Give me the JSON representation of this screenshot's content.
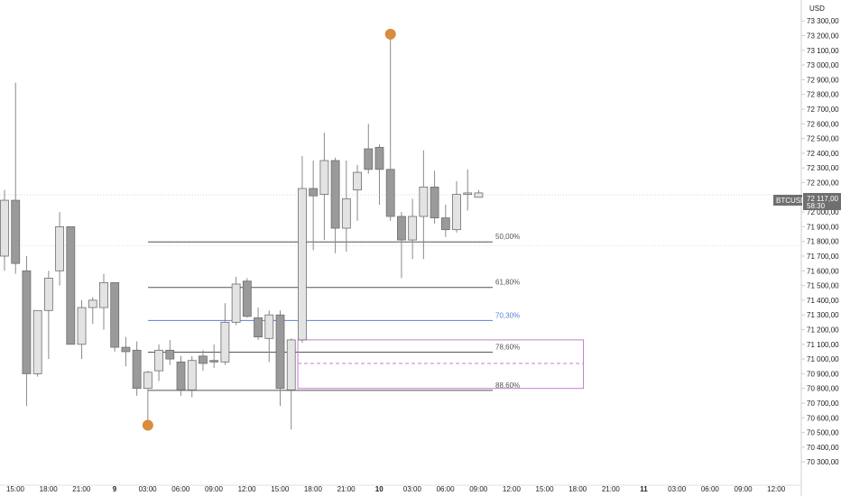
{
  "chart_data": {
    "type": "candlestick",
    "symbol": "BTCUSD",
    "currency_label": "USD",
    "current_price_label": "72 117,00",
    "countdown_label": "58:30",
    "current_price": 72117,
    "y_range": [
      70200,
      73400
    ],
    "y_ticks": [
      {
        "v": 73300,
        "label": "73 300,00"
      },
      {
        "v": 73200,
        "label": "73 200,00"
      },
      {
        "v": 73100,
        "label": "73 100,00"
      },
      {
        "v": 73000,
        "label": "73 000,00"
      },
      {
        "v": 72900,
        "label": "72 900,00"
      },
      {
        "v": 72800,
        "label": "72 800,00"
      },
      {
        "v": 72700,
        "label": "72 700,00"
      },
      {
        "v": 72600,
        "label": "72 600,00"
      },
      {
        "v": 72500,
        "label": "72 500,00"
      },
      {
        "v": 72400,
        "label": "72 400,00"
      },
      {
        "v": 72300,
        "label": "72 300,00"
      },
      {
        "v": 72200,
        "label": "72 200,00"
      },
      {
        "v": 72000,
        "label": "72 000,00"
      },
      {
        "v": 71900,
        "label": "71 900,00"
      },
      {
        "v": 71800,
        "label": "71 800,00"
      },
      {
        "v": 71700,
        "label": "71 700,00"
      },
      {
        "v": 71600,
        "label": "71 600,00"
      },
      {
        "v": 71500,
        "label": "71 500,00"
      },
      {
        "v": 71400,
        "label": "71 400,00"
      },
      {
        "v": 71300,
        "label": "71 300,00"
      },
      {
        "v": 71200,
        "label": "71 200,00"
      },
      {
        "v": 71100,
        "label": "71 100,00"
      },
      {
        "v": 71000,
        "label": "71 000,00"
      },
      {
        "v": 70900,
        "label": "70 900,00"
      },
      {
        "v": 70800,
        "label": "70 800,00"
      },
      {
        "v": 70700,
        "label": "70 700,00"
      },
      {
        "v": 70600,
        "label": "70 600,00"
      },
      {
        "v": 70500,
        "label": "70 500,00"
      },
      {
        "v": 70400,
        "label": "70 400,00"
      },
      {
        "v": 70300,
        "label": "70 300,00"
      }
    ],
    "x_ticks": [
      {
        "i": 0,
        "label": "15:00",
        "bold": false
      },
      {
        "i": 3,
        "label": "18:00",
        "bold": false
      },
      {
        "i": 6,
        "label": "21:00",
        "bold": false
      },
      {
        "i": 9,
        "label": "9",
        "bold": true
      },
      {
        "i": 12,
        "label": "03:00",
        "bold": false
      },
      {
        "i": 15,
        "label": "06:00",
        "bold": false
      },
      {
        "i": 18,
        "label": "09:00",
        "bold": false
      },
      {
        "i": 21,
        "label": "12:00",
        "bold": false
      },
      {
        "i": 24,
        "label": "15:00",
        "bold": false
      },
      {
        "i": 27,
        "label": "18:00",
        "bold": false
      },
      {
        "i": 30,
        "label": "21:00",
        "bold": false
      },
      {
        "i": 33,
        "label": "10",
        "bold": true
      },
      {
        "i": 36,
        "label": "03:00",
        "bold": false
      },
      {
        "i": 39,
        "label": "06:00",
        "bold": false
      },
      {
        "i": 42,
        "label": "09:00",
        "bold": false
      },
      {
        "i": 45,
        "label": "12:00",
        "bold": false
      },
      {
        "i": 48,
        "label": "15:00",
        "bold": false
      },
      {
        "i": 51,
        "label": "18:00",
        "bold": false
      },
      {
        "i": 54,
        "label": "21:00",
        "bold": false
      },
      {
        "i": 57,
        "label": "11",
        "bold": true
      },
      {
        "i": 60,
        "label": "03:00",
        "bold": false
      },
      {
        "i": 63,
        "label": "06:00",
        "bold": false
      },
      {
        "i": 66,
        "label": "09:00",
        "bold": false
      },
      {
        "i": 69,
        "label": "12:00",
        "bold": false
      }
    ],
    "candles": [
      {
        "o": 71700,
        "h": 72150,
        "l": 71600,
        "c": 72080
      },
      {
        "o": 72080,
        "h": 72880,
        "l": 71580,
        "c": 71650
      },
      {
        "o": 71600,
        "h": 71700,
        "l": 70680,
        "c": 70900
      },
      {
        "o": 70900,
        "h": 71330,
        "l": 70880,
        "c": 71330
      },
      {
        "o": 71330,
        "h": 71600,
        "l": 71000,
        "c": 71550
      },
      {
        "o": 71600,
        "h": 72000,
        "l": 71500,
        "c": 71900
      },
      {
        "o": 71900,
        "h": 71900,
        "l": 71100,
        "c": 71100
      },
      {
        "o": 71100,
        "h": 71400,
        "l": 71000,
        "c": 71350
      },
      {
        "o": 71350,
        "h": 71420,
        "l": 71240,
        "c": 71400
      },
      {
        "o": 71350,
        "h": 71580,
        "l": 71200,
        "c": 71520
      },
      {
        "o": 71520,
        "h": 71520,
        "l": 71050,
        "c": 71080
      },
      {
        "o": 71080,
        "h": 71150,
        "l": 70950,
        "c": 71050
      },
      {
        "o": 71060,
        "h": 71120,
        "l": 70750,
        "c": 70800
      },
      {
        "o": 70800,
        "h": 70920,
        "l": 70580,
        "c": 70910
      },
      {
        "o": 70920,
        "h": 71100,
        "l": 70850,
        "c": 71060
      },
      {
        "o": 71060,
        "h": 71130,
        "l": 70960,
        "c": 71000
      },
      {
        "o": 70980,
        "h": 71020,
        "l": 70750,
        "c": 70790
      },
      {
        "o": 70790,
        "h": 71020,
        "l": 70740,
        "c": 70990
      },
      {
        "o": 71020,
        "h": 71060,
        "l": 70920,
        "c": 70970
      },
      {
        "o": 70990,
        "h": 71100,
        "l": 70940,
        "c": 70980
      },
      {
        "o": 70980,
        "h": 71380,
        "l": 70960,
        "c": 71250
      },
      {
        "o": 71250,
        "h": 71560,
        "l": 71230,
        "c": 71510
      },
      {
        "o": 71530,
        "h": 71550,
        "l": 71280,
        "c": 71290
      },
      {
        "o": 71280,
        "h": 71350,
        "l": 71130,
        "c": 71150
      },
      {
        "o": 71140,
        "h": 71330,
        "l": 70980,
        "c": 71300
      },
      {
        "o": 71300,
        "h": 71330,
        "l": 70680,
        "c": 70800
      },
      {
        "o": 70790,
        "h": 71140,
        "l": 70520,
        "c": 71130
      },
      {
        "o": 71130,
        "h": 72380,
        "l": 71110,
        "c": 72160
      },
      {
        "o": 72160,
        "h": 72350,
        "l": 71740,
        "c": 72110
      },
      {
        "o": 72120,
        "h": 72540,
        "l": 71810,
        "c": 72350
      },
      {
        "o": 72350,
        "h": 72370,
        "l": 71720,
        "c": 71890
      },
      {
        "o": 71890,
        "h": 72350,
        "l": 71730,
        "c": 72090
      },
      {
        "o": 72150,
        "h": 72320,
        "l": 71940,
        "c": 72270
      },
      {
        "o": 72430,
        "h": 72600,
        "l": 72260,
        "c": 72290
      },
      {
        "o": 72440,
        "h": 72460,
        "l": 72050,
        "c": 72290
      },
      {
        "o": 72290,
        "h": 73200,
        "l": 71940,
        "c": 71970
      },
      {
        "o": 71970,
        "h": 72000,
        "l": 71550,
        "c": 71810
      },
      {
        "o": 71810,
        "h": 72090,
        "l": 71680,
        "c": 71970
      },
      {
        "o": 71970,
        "h": 72420,
        "l": 71680,
        "c": 72170
      },
      {
        "o": 72170,
        "h": 72280,
        "l": 71920,
        "c": 71960
      },
      {
        "o": 71960,
        "h": 72050,
        "l": 71830,
        "c": 71880
      },
      {
        "o": 71880,
        "h": 72210,
        "l": 71860,
        "c": 72120
      },
      {
        "o": 72120,
        "h": 72290,
        "l": 72010,
        "c": 72130
      },
      {
        "o": 72100,
        "h": 72150,
        "l": 72100,
        "c": 72130
      }
    ],
    "fib_levels": [
      {
        "label": "50,00%",
        "price": 71797,
        "color": "#555555"
      },
      {
        "label": "61,80%",
        "price": 71487,
        "color": "#555555"
      },
      {
        "label": "70,30%",
        "price": 71262,
        "color": "#5b7fd6"
      },
      {
        "label": "78,60%",
        "price": 71047,
        "color": "#555555"
      },
      {
        "label": "88,60%",
        "price": 70787,
        "color": "#555555"
      }
    ],
    "markers": [
      {
        "i": 35,
        "price": 73210,
        "color": "#d98c3c"
      },
      {
        "i": 13,
        "price": 70550,
        "color": "#d98c3c"
      }
    ],
    "box": {
      "i0": 26.6,
      "i1": 52.5,
      "top": 71130,
      "bottom": 70800,
      "mid": 70970,
      "color": "#c57bd3"
    }
  }
}
